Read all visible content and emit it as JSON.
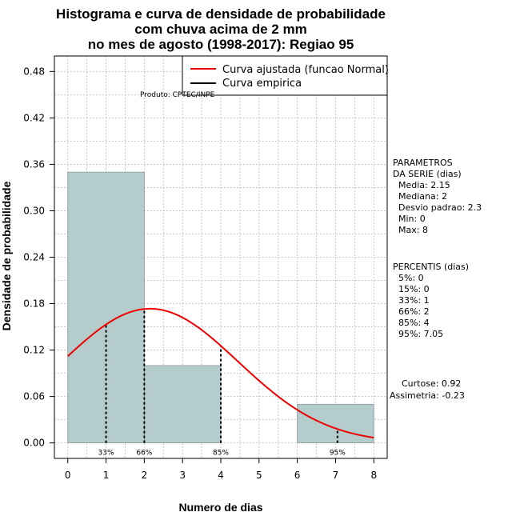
{
  "chart_data": {
    "type": "histogram",
    "title_lines": [
      "Histograma e curva de densidade de probabilidade",
      "com chuva acima de 2 mm",
      "no mes de agosto (1998-2017): Regiao 95"
    ],
    "xlabel": "Numero de dias",
    "ylabel": "Densidade de probabilidade",
    "xlim": [
      -0.35,
      8.35
    ],
    "ylim": [
      -0.02,
      0.5
    ],
    "x_ticks": [
      0,
      1,
      2,
      3,
      4,
      5,
      6,
      7,
      8
    ],
    "x_tick_labels": [
      "0",
      "1",
      "2",
      "3",
      "4",
      "5",
      "6",
      "7",
      "8"
    ],
    "y_ticks": [
      0.0,
      0.06,
      0.12,
      0.18,
      0.24,
      0.3,
      0.36,
      0.42,
      0.48
    ],
    "y_tick_labels": [
      "0.00",
      "0.06",
      "0.12",
      "0.18",
      "0.24",
      "0.30",
      "0.36",
      "0.42",
      "0.48"
    ],
    "grid": true,
    "bins": [
      {
        "start": 0,
        "end": 2,
        "density": 0.35
      },
      {
        "start": 2,
        "end": 4,
        "density": 0.1
      },
      {
        "start": 4,
        "end": 6,
        "density": 0.0
      },
      {
        "start": 6,
        "end": 8,
        "density": 0.05
      }
    ],
    "bar_color": "#b4cccc",
    "fitted_curve": {
      "name": "Curva ajustada (funcao Normal)",
      "color": "#ee0000",
      "mean": 2.15,
      "sd": 2.3,
      "x_range": [
        0,
        8
      ]
    },
    "empirical_curve": {
      "name": "Curva empirica",
      "color": "#000000"
    },
    "percentile_lines": [
      {
        "x": 1,
        "label": "33%"
      },
      {
        "x": 2,
        "label": "66%"
      },
      {
        "x": 4,
        "label": "85%"
      },
      {
        "x": 7.05,
        "label": "95%"
      }
    ],
    "legend_position": "top-right",
    "product_note": "Produto: CPTEC/INPE",
    "parameters": {
      "header": [
        "PARAMETROS",
        "DA SERIE (dias)"
      ],
      "lines": [
        "Media: 2.15",
        "Mediana: 2",
        "Desvio padrao: 2.3",
        "Min: 0",
        "Max: 8"
      ]
    },
    "percentiles": {
      "header": "PERCENTIS (dias)",
      "lines": [
        "5%: 0",
        "15%: 0",
        "33%: 1",
        "66%: 2",
        "85%: 4",
        "95%: 7.05"
      ]
    },
    "shape_stats": [
      "Curtose: 0.92",
      "Assimetria: -0.23"
    ]
  }
}
